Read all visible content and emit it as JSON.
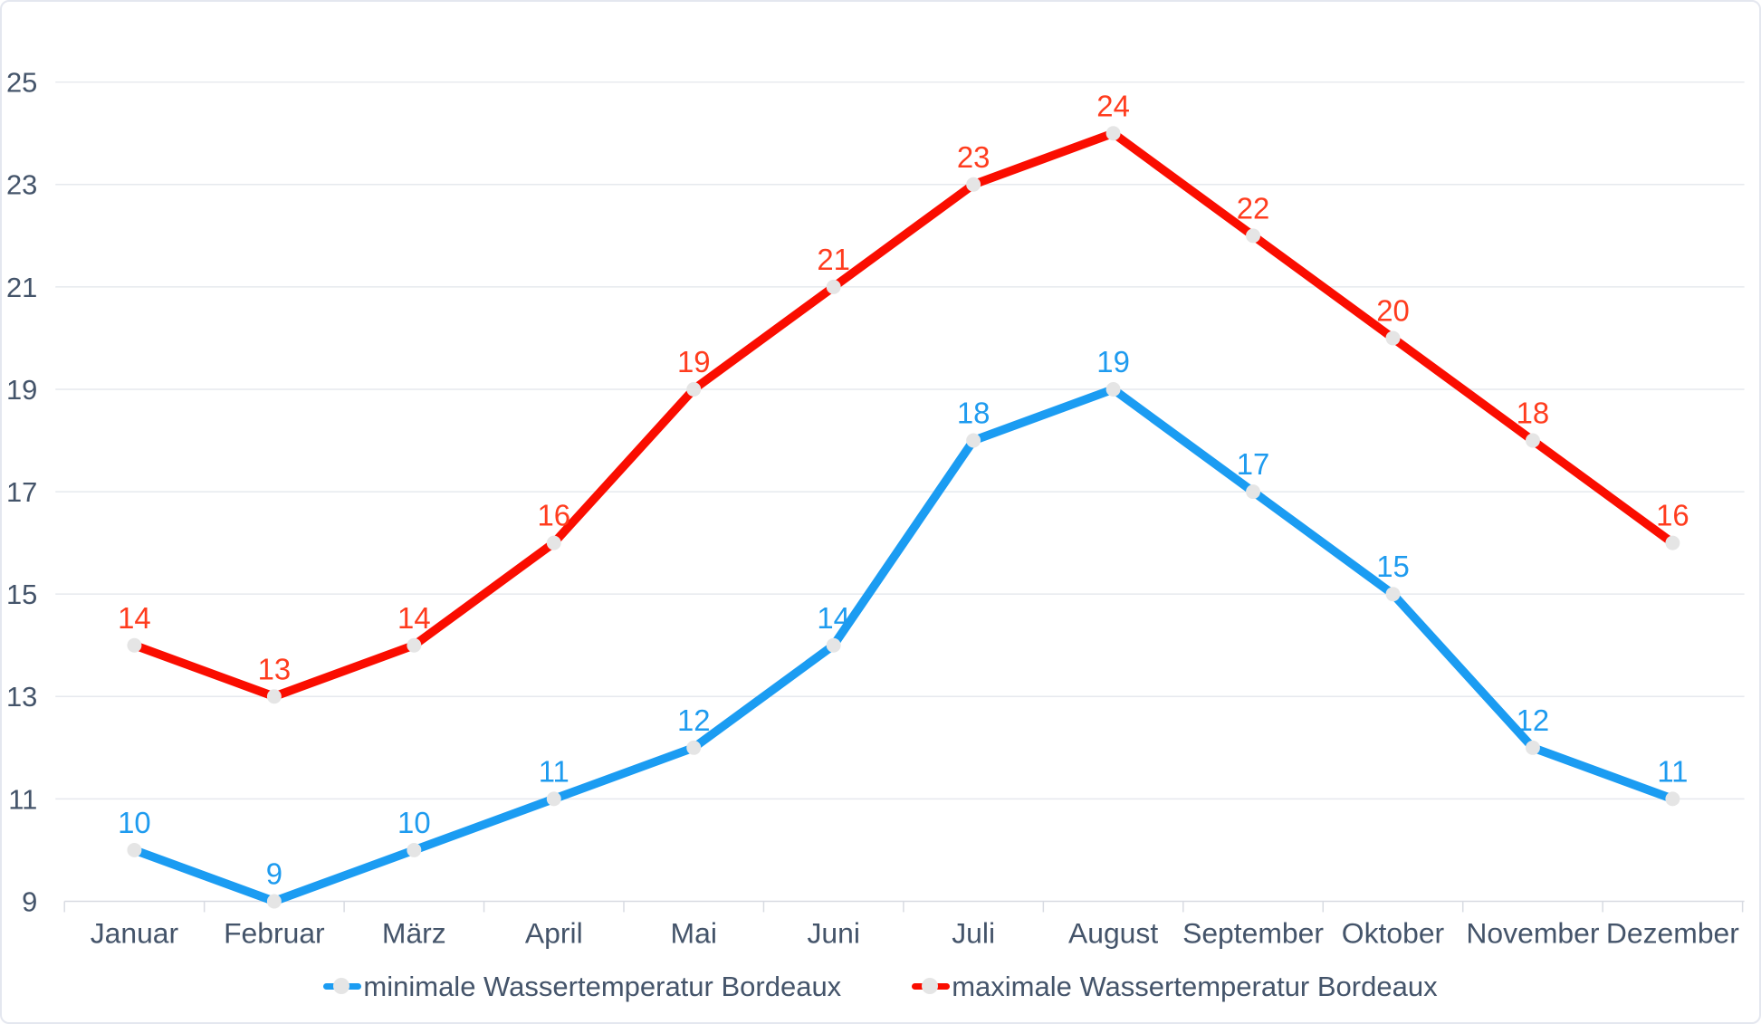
{
  "chart_data": {
    "type": "line",
    "categories": [
      "Januar",
      "Februar",
      "März",
      "April",
      "Mai",
      "Juni",
      "Juli",
      "August",
      "September",
      "Oktober",
      "November",
      "Dezember"
    ],
    "series": [
      {
        "key": "minimale-wassertemperatur",
        "name": "minimale Wassertemperatur Bordeaux",
        "color": "#1b9cf2",
        "label_color": "#1e9bef",
        "values": [
          10,
          9,
          10,
          11,
          12,
          14,
          18,
          19,
          17,
          15,
          12,
          11
        ]
      },
      {
        "key": "maximale-wassertemperatur",
        "name": "maximale Wassertemperatur Bordeaux",
        "color": "#fa0d00",
        "label_color": "#ff3c1e",
        "values": [
          14,
          13,
          14,
          16,
          19,
          21,
          23,
          24,
          22,
          20,
          18,
          16
        ]
      }
    ],
    "yticks": [
      9,
      11,
      13,
      15,
      17,
      19,
      21,
      23,
      25
    ],
    "ylim": [
      9,
      25
    ],
    "xlabel": "",
    "ylabel": "",
    "title": "",
    "grid": "horizontal",
    "data_labels": "above-points",
    "legend_position": "bottom-center",
    "marker_color": "#e5e5e5",
    "gridline_color": "#e6e9ee",
    "axis_text_color": "#44546a"
  }
}
